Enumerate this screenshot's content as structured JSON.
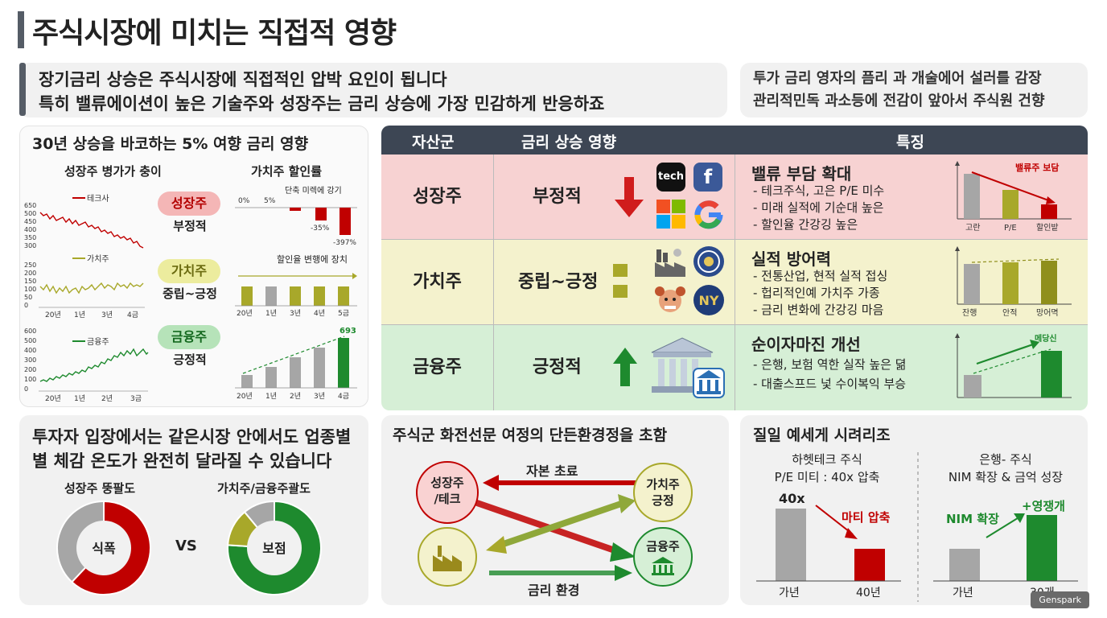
{
  "title": "주식시장에 미치는 직접적 영향",
  "intro": {
    "line1": "장기금리 상승은 주식시장에 직접적인 압박 요인이 됩니다",
    "line2": "특히 밸류에이션이 높은 기술주와 성장주는 금리 상승에 가장 민감하게 반응하죠"
  },
  "side_note": {
    "line1": "투가 금리 영자의 픔리 과 개술에어 설러를 감장",
    "line2": "관리적민독 과소등에 전감이 앞아서 주식원 건향"
  },
  "left_panel": {
    "title": "30년 상승을 바코하는 5% 여향 금리 영향",
    "col1_title": "성장주 병가가 충이",
    "col2_title": "가치주 할인률",
    "tech_legend": "테크사",
    "value_legend": "가치주",
    "fin_legend": "금융주",
    "pills": [
      {
        "name": "성장주",
        "label": "부정적"
      },
      {
        "name": "가치주",
        "label": "중립~긍정"
      },
      {
        "name": "금융주",
        "label": "긍정적"
      }
    ],
    "bar1_note": "단축 미렉에 강기",
    "bar1_axis": [
      "0%",
      "5%"
    ],
    "bar1_labels": [
      "-35%",
      "-397%"
    ],
    "bar2_note": "할인율 변행에 장치",
    "bar3_label": "693"
  },
  "axis_ticks": {
    "growth_y": [
      "650",
      "500",
      "450",
      "400",
      "350",
      "300"
    ],
    "value_y": [
      "250",
      "200",
      "150",
      "100",
      "50",
      "0"
    ],
    "fin_y": [
      "600",
      "500",
      "400",
      "300",
      "200",
      "100",
      "0"
    ],
    "x1": [
      "20년",
      "1년",
      "3년",
      "4금"
    ],
    "x2": [
      "20년",
      "1년",
      "2년",
      "3금"
    ],
    "bar_x": [
      "20년",
      "1년",
      "3년",
      "4년",
      "5금"
    ],
    "bar_x2": [
      "20년",
      "1년",
      "2년",
      "3년",
      "4금"
    ]
  },
  "table": {
    "headers": [
      "자산군",
      "금리 상승 영향",
      "특징"
    ],
    "rows": [
      {
        "asset": "성장주",
        "effect": "부정적",
        "feat_title": "밸류 부담 확대",
        "bullets": [
          "- 테크주식, 고은 P/E 미수",
          "- 미래 실적에 기순대 높은",
          "- 할인율 간강깅 높은"
        ],
        "mini_note": "밸류주 보담",
        "mini_x": [
          "고란",
          "P/E",
          "할인밭"
        ]
      },
      {
        "asset": "가치주",
        "effect": "중립~긍정",
        "feat_title": "실적 방어력",
        "bullets": [
          "- 전통산업, 현적 실적 접싱",
          "- 헙리적인예 가치주 가종",
          "- 금리 변화에 간강깅 마음"
        ],
        "mini_note": "",
        "mini_x": [
          "잔행",
          "안적",
          "망어멱"
        ]
      },
      {
        "asset": "금융주",
        "effect": "긍정적",
        "feat_title": "순이자마진 개선",
        "bullets": [
          "- 은행, 보험 역한 실작 높은 뎖",
          "- 대출스프드 넟 수이복익 부승"
        ],
        "mini_note": "메당신",
        "mini_x": []
      }
    ],
    "logos": [
      "tech",
      "f",
      "ms",
      "G"
    ]
  },
  "bottom_left": {
    "line1": "투자자 입장에서는 같은시장 안에서도 업종별",
    "line2": "별 체감 온도가 완전히 달라질 수 있습니다",
    "donut1_title": "성장주 뚱팔도",
    "donut2_title": "가치주/금융주괄도",
    "donut1_center": "식폭",
    "donut2_center": "보점",
    "vs": "VS",
    "donut1": {
      "red": 0.62,
      "gray": 0.38
    },
    "donut2": {
      "green": 0.76,
      "olive": 0.13,
      "gray": 0.11
    },
    "colors": {
      "red": "#c00000",
      "green": "#1e8a2e",
      "olive": "#a8a82a",
      "gray": "#a6a6a6"
    }
  },
  "bottom_mid": {
    "title": "주식군 화전선문 여정의 단든환경정을 초함",
    "node_growth": "성장주\n/테크",
    "node_growth_l1": "성장주",
    "node_growth_l2": "/테크",
    "node_value_l1": "가치주",
    "node_value_l2": "긍정",
    "node_fin": "금융주",
    "top_label": "자본 초료",
    "bottom_label": "금리 환경"
  },
  "bottom_right": {
    "title": "질일 예세게 시려리조",
    "left_title1": "하헷테크 주식",
    "left_title2": "P/E 미티 : 40x 압축",
    "right_title1": "은행- 주식",
    "right_title2": "NIM 확장 & 금억 성장",
    "left_bar_label": "40x",
    "left_note": "마티 압축",
    "left_x": [
      "가년",
      "40년"
    ],
    "right_note1": "NIM 확장",
    "right_note2": "+영쟁개",
    "right_x": [
      "가년",
      "30개"
    ]
  },
  "watermark": "Genspark"
}
